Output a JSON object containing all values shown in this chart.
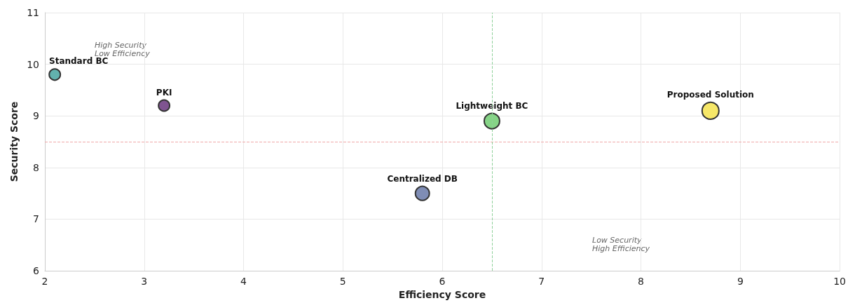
{
  "chart_data": {
    "type": "bubble",
    "xlabel": "Efficiency Score",
    "ylabel": "Security Score",
    "xlim": [
      2,
      10
    ],
    "xticks": [
      2,
      3,
      4,
      5,
      6,
      7,
      8,
      9,
      10
    ],
    "ylim": [
      6,
      11
    ],
    "yticks": [
      6,
      7,
      8,
      9,
      10,
      11
    ],
    "grid": true,
    "legend": false,
    "series": [
      {
        "name": "Standard BC",
        "color": "#62b2ae",
        "x": [
          2.1
        ],
        "values": [
          9.8
        ],
        "sizes": [
          0.44
        ]
      },
      {
        "name": "PKI",
        "color": "#7f5490",
        "x": [
          3.2
        ],
        "values": [
          9.2
        ],
        "sizes": [
          0.44
        ]
      },
      {
        "name": "Lightweight BC",
        "color": "#86d487",
        "x": [
          6.5
        ],
        "values": [
          8.9
        ],
        "sizes": [
          0.84
        ]
      },
      {
        "name": "Centralized DB",
        "color": "#7f8db5",
        "x": [
          5.8
        ],
        "values": [
          7.5
        ],
        "sizes": [
          0.69
        ]
      },
      {
        "name": "Proposed Solution",
        "color": "#f6e768",
        "x": [
          8.7
        ],
        "values": [
          9.1
        ],
        "sizes": [
          1
        ]
      }
    ],
    "ref_lines": [
      {
        "axis": "y",
        "value": 8.5,
        "color": "#f0a8a8",
        "line_style": "dashed"
      },
      {
        "axis": "x",
        "value": 6.5,
        "color": "#8fd19a",
        "line_style": "dashed"
      }
    ],
    "annotations": [
      "High Security\nLow Efficiency",
      "Low Security\nHigh Efficiency"
    ]
  }
}
